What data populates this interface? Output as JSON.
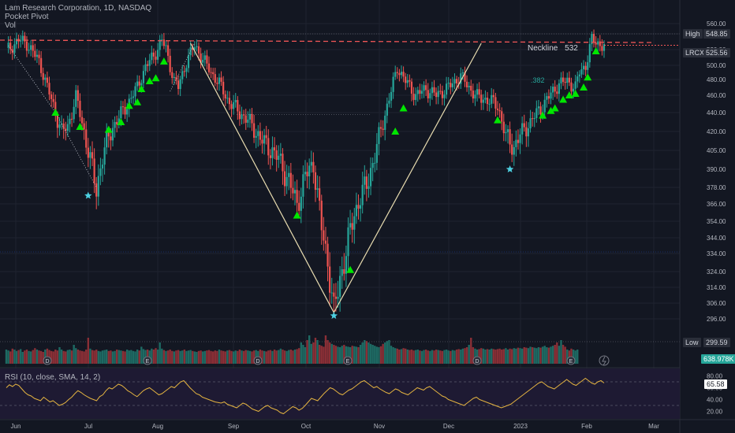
{
  "chart_data": {
    "type": "candlestick",
    "title": "Lam Research Corporation, 1D, NASDAQ",
    "indicators": [
      "Pocket Pivot",
      "Vol"
    ],
    "ticker": "LRCX",
    "last_price": "525.56",
    "high_label": "High",
    "high_value": "548.85",
    "low_label": "Low",
    "low_value": "299.59",
    "volume_tag": "638.978K",
    "neckline_label": "Neckline",
    "neckline_value": "532",
    "fib_label": ".382",
    "y_ticks": [
      560,
      540,
      520,
      500,
      480,
      460,
      440,
      420,
      405,
      390,
      378,
      366,
      354,
      344,
      334,
      324,
      314,
      306,
      296
    ],
    "x_ticks": [
      "Jun",
      "Jul",
      "Aug",
      "Sep",
      "Oct",
      "Nov",
      "Dec",
      "2023",
      "Feb",
      "Mar"
    ],
    "ylim": [
      296,
      565
    ],
    "rsi": {
      "label": "RSI (10, close, SMA, 14, 2)",
      "value": "65.58",
      "ticks": [
        80,
        60,
        40,
        20
      ],
      "ylim": [
        10,
        90
      ],
      "bands": [
        70,
        30
      ]
    },
    "price_path": [
      [
        0,
        518
      ],
      [
        6,
        532
      ],
      [
        10,
        528
      ],
      [
        16,
        505
      ],
      [
        20,
        470
      ],
      [
        24,
        440
      ],
      [
        27,
        420
      ],
      [
        30,
        425
      ],
      [
        34,
        458
      ],
      [
        38,
        420
      ],
      [
        42,
        390
      ],
      [
        44,
        376
      ],
      [
        47,
        400
      ],
      [
        52,
        425
      ],
      [
        58,
        445
      ],
      [
        64,
        470
      ],
      [
        68,
        498
      ],
      [
        72,
        512
      ],
      [
        76,
        532
      ],
      [
        78,
        520
      ],
      [
        82,
        478
      ],
      [
        84,
        470
      ],
      [
        88,
        505
      ],
      [
        92,
        525
      ],
      [
        96,
        508
      ],
      [
        100,
        490
      ],
      [
        104,
        475
      ],
      [
        108,
        455
      ],
      [
        114,
        440
      ],
      [
        118,
        432
      ],
      [
        122,
        420
      ],
      [
        126,
        410
      ],
      [
        130,
        405
      ],
      [
        134,
        395
      ],
      [
        138,
        382
      ],
      [
        142,
        366
      ],
      [
        146,
        385
      ],
      [
        150,
        395
      ],
      [
        154,
        350
      ],
      [
        157,
        330
      ],
      [
        160,
        300
      ],
      [
        163,
        320
      ],
      [
        166,
        335
      ],
      [
        170,
        360
      ],
      [
        176,
        380
      ],
      [
        180,
        400
      ],
      [
        184,
        430
      ],
      [
        188,
        465
      ],
      [
        191,
        497
      ],
      [
        195,
        478
      ],
      [
        200,
        460
      ],
      [
        205,
        468
      ],
      [
        210,
        460
      ],
      [
        216,
        470
      ],
      [
        222,
        485
      ],
      [
        226,
        470
      ],
      [
        230,
        458
      ],
      [
        235,
        455
      ],
      [
        240,
        448
      ],
      [
        244,
        415
      ],
      [
        248,
        408
      ],
      [
        252,
        420
      ],
      [
        256,
        430
      ],
      [
        260,
        442
      ],
      [
        265,
        458
      ],
      [
        270,
        475
      ],
      [
        274,
        478
      ],
      [
        278,
        470
      ],
      [
        280,
        490
      ],
      [
        283,
        500
      ],
      [
        286,
        532
      ],
      [
        289,
        528
      ],
      [
        292,
        525
      ]
    ],
    "neckline_price": 532,
    "markers_up": [
      [
        24,
        440
      ],
      [
        36,
        425
      ],
      [
        50,
        422
      ],
      [
        56,
        430
      ],
      [
        60,
        448
      ],
      [
        64,
        452
      ],
      [
        66,
        468
      ],
      [
        70,
        478
      ],
      [
        73,
        482
      ],
      [
        77,
        505
      ],
      [
        142,
        358
      ],
      [
        168,
        325
      ],
      [
        190,
        420
      ],
      [
        194,
        445
      ],
      [
        240,
        432
      ],
      [
        262,
        437
      ],
      [
        266,
        442
      ],
      [
        268,
        445
      ],
      [
        272,
        455
      ],
      [
        275,
        460
      ],
      [
        278,
        462
      ],
      [
        282,
        470
      ],
      [
        284,
        483
      ],
      [
        288,
        518
      ]
    ],
    "markers_star": [
      [
        40,
        372
      ],
      [
        160,
        298
      ],
      [
        246,
        390
      ]
    ],
    "vshape": [
      [
        90,
        528
      ],
      [
        160,
        300
      ],
      [
        232,
        528
      ]
    ],
    "volume": [
      0.3,
      0.28,
      0.26,
      0.32,
      0.3,
      0.27,
      0.29,
      0.31,
      0.25,
      0.28,
      0.3,
      0.27,
      0.26,
      0.29,
      0.33,
      0.3,
      0.28,
      0.27,
      0.25,
      0.3,
      0.32,
      0.29,
      0.27,
      0.26,
      0.3,
      0.28,
      0.35,
      0.3,
      0.27,
      0.26,
      0.29,
      0.3,
      0.28,
      0.4,
      0.33,
      0.3,
      0.28,
      0.27,
      0.26,
      0.3,
      0.55,
      0.32,
      0.29,
      0.28,
      0.3,
      0.27,
      0.26,
      0.28,
      0.29,
      0.3,
      0.27,
      0.28,
      0.26,
      0.27,
      0.3,
      0.29,
      0.28,
      0.27,
      0.26,
      0.3,
      0.28,
      0.29,
      0.27,
      0.26,
      0.3,
      0.28,
      0.36,
      0.31,
      0.29,
      0.3,
      0.28,
      0.32,
      0.3,
      0.33,
      0.3,
      0.45,
      0.32,
      0.29,
      0.27,
      0.28,
      0.3,
      0.27,
      0.26,
      0.28,
      0.29,
      0.27,
      0.28,
      0.3,
      0.27,
      0.28,
      0.29,
      0.27,
      0.26,
      0.25,
      0.27,
      0.28,
      0.26,
      0.27,
      0.28,
      0.29,
      0.27,
      0.26,
      0.28,
      0.27,
      0.3,
      0.28,
      0.27,
      0.26,
      0.28,
      0.29,
      0.27,
      0.26,
      0.28,
      0.27,
      0.3,
      0.28,
      0.27,
      0.29,
      0.28,
      0.27,
      0.26,
      0.28,
      0.29,
      0.27,
      0.3,
      0.28,
      0.27,
      0.26,
      0.28,
      0.29,
      0.27,
      0.3,
      0.28,
      0.29,
      0.32,
      0.3,
      0.28,
      0.27,
      0.29,
      0.3,
      0.28,
      0.3,
      0.31,
      0.33,
      0.45,
      0.4,
      0.35,
      0.5,
      0.6,
      0.42,
      0.45,
      0.55,
      0.5,
      0.4,
      0.38,
      0.36,
      0.6,
      0.5,
      0.45,
      0.42,
      0.4,
      0.38,
      0.36,
      0.35,
      0.38,
      0.4,
      0.37,
      0.36,
      0.35,
      0.38,
      0.37,
      0.36,
      0.35,
      0.4,
      0.45,
      0.5,
      0.48,
      0.45,
      0.42,
      0.4,
      0.38,
      0.36,
      0.35,
      0.37,
      0.42,
      0.45,
      0.48,
      0.5,
      0.38,
      0.35,
      0.33,
      0.32,
      0.3,
      0.31,
      0.33,
      0.32,
      0.3,
      0.29,
      0.3,
      0.28,
      0.29,
      0.3,
      0.28,
      0.27,
      0.29,
      0.3,
      0.28,
      0.27,
      0.29,
      0.28,
      0.3,
      0.29,
      0.28,
      0.27,
      0.29,
      0.3,
      0.28,
      0.27,
      0.29,
      0.28,
      0.3,
      0.31,
      0.3,
      0.32,
      0.33,
      0.35,
      0.4,
      0.55,
      0.35,
      0.32,
      0.3,
      0.31,
      0.33,
      0.32,
      0.3,
      0.31,
      0.3,
      0.32,
      0.31,
      0.3,
      0.31,
      0.32,
      0.3,
      0.31,
      0.33,
      0.3,
      0.32,
      0.31,
      0.33,
      0.32,
      0.34,
      0.33,
      0.32,
      0.35,
      0.34,
      0.33,
      0.36,
      0.35,
      0.34,
      0.33,
      0.35,
      0.34,
      0.36,
      0.38,
      0.35,
      0.34,
      0.36,
      0.38,
      0.4,
      0.45,
      0.38,
      0.5,
      0.4,
      0.36,
      0.3,
      0.28,
      0.32,
      0.3,
      0.28,
      0.3
    ],
    "rsi_values": [
      60,
      65,
      62,
      66,
      64,
      58,
      52,
      48,
      46,
      42,
      40,
      38,
      44,
      40,
      36,
      38,
      34,
      30,
      32,
      35,
      40,
      44,
      50,
      55,
      52,
      48,
      45,
      42,
      40,
      38,
      45,
      48,
      55,
      60,
      58,
      62,
      66,
      64,
      60,
      55,
      52,
      48,
      45,
      50,
      55,
      58,
      60,
      56,
      52,
      48,
      50,
      54,
      58,
      62,
      60,
      65,
      70,
      72,
      66,
      60,
      55,
      50,
      48,
      44,
      42,
      40,
      38,
      36,
      35,
      34,
      36,
      32,
      30,
      28,
      26,
      30,
      34,
      32,
      28,
      24,
      22,
      20,
      24,
      28,
      30,
      26,
      24,
      22,
      18,
      16,
      20,
      24,
      28,
      26,
      22,
      25,
      30,
      36,
      42,
      40,
      38,
      44,
      50,
      55,
      60,
      58,
      54,
      50,
      48,
      52,
      56,
      58,
      62,
      66,
      70,
      72,
      68,
      64,
      60,
      62,
      58,
      55,
      52,
      50,
      54,
      58,
      56,
      52,
      50,
      48,
      52,
      56,
      60,
      58,
      56,
      60,
      62,
      58,
      54,
      50,
      46,
      44,
      40,
      38,
      36,
      34,
      32,
      30,
      34,
      38,
      42,
      44,
      40,
      38,
      36,
      34,
      32,
      30,
      28,
      26,
      28,
      30,
      32,
      36,
      40,
      44,
      48,
      52,
      56,
      60,
      64,
      68,
      70,
      66,
      62,
      60,
      58,
      62,
      66,
      70,
      74,
      70,
      66,
      64,
      68,
      72,
      76,
      72,
      68,
      66,
      70,
      72,
      68
    ]
  }
}
